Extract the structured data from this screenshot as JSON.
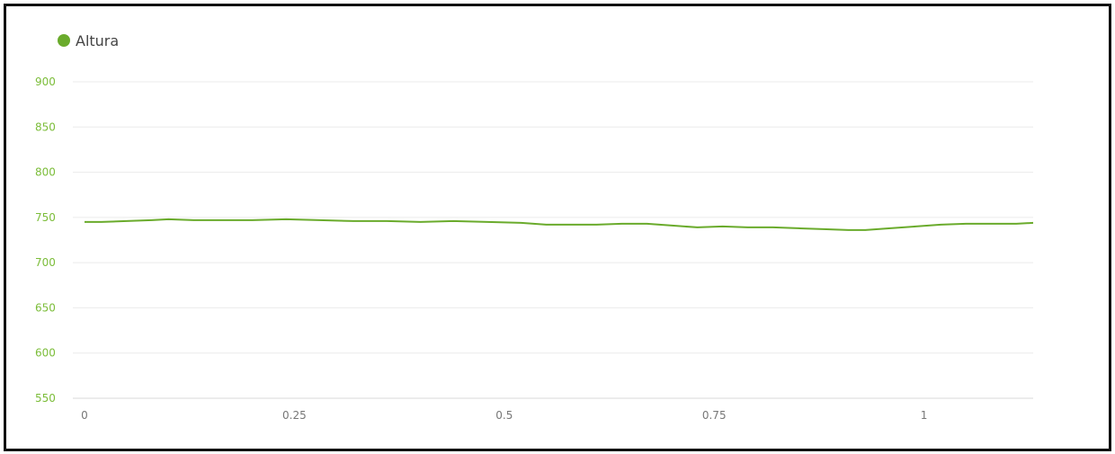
{
  "chart_data": {
    "type": "line",
    "title": "",
    "xlabel": "",
    "ylabel": "",
    "legend_position": "top-left",
    "grid": true,
    "xlim": [
      0,
      1.13
    ],
    "ylim": [
      550,
      900
    ],
    "x_ticks": [
      0,
      0.25,
      0.5,
      0.75,
      1
    ],
    "x_tick_labels": [
      "0",
      "0.25",
      "0.5",
      "0.75",
      "1"
    ],
    "y_ticks": [
      550,
      600,
      650,
      700,
      750,
      800,
      850,
      900
    ],
    "y_tick_labels": [
      "550",
      "600",
      "650",
      "700",
      "750",
      "800",
      "850",
      "900"
    ],
    "series": [
      {
        "name": "Altura",
        "color": "#6aab2c",
        "x": [
          0,
          0.02,
          0.05,
          0.08,
          0.1,
          0.13,
          0.16,
          0.2,
          0.24,
          0.28,
          0.32,
          0.36,
          0.4,
          0.44,
          0.48,
          0.52,
          0.55,
          0.58,
          0.61,
          0.64,
          0.67,
          0.7,
          0.73,
          0.76,
          0.79,
          0.82,
          0.85,
          0.88,
          0.91,
          0.93,
          0.96,
          0.99,
          1.02,
          1.05,
          1.08,
          1.11,
          1.13
        ],
        "y": [
          745,
          745,
          746,
          747,
          748,
          747,
          747,
          747,
          748,
          747,
          746,
          746,
          745,
          746,
          745,
          744,
          742,
          742,
          742,
          743,
          743,
          741,
          739,
          740,
          739,
          739,
          738,
          737,
          736,
          736,
          738,
          740,
          742,
          743,
          743,
          743,
          744
        ]
      }
    ]
  }
}
